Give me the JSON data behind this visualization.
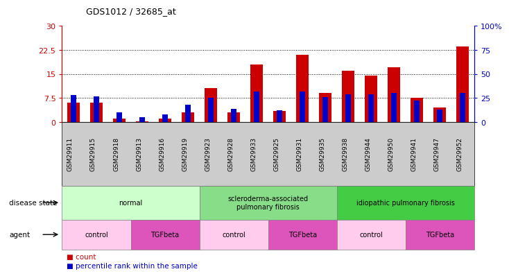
{
  "title": "GDS1012 / 32685_at",
  "samples": [
    "GSM29911",
    "GSM29915",
    "GSM29918",
    "GSM29913",
    "GSM29916",
    "GSM29919",
    "GSM29923",
    "GSM29928",
    "GSM29933",
    "GSM29925",
    "GSM29931",
    "GSM29935",
    "GSM29938",
    "GSM29944",
    "GSM29950",
    "GSM29941",
    "GSM29947",
    "GSM29952"
  ],
  "count_values": [
    6.0,
    6.0,
    1.0,
    0.3,
    1.0,
    3.0,
    10.5,
    3.0,
    18.0,
    3.5,
    21.0,
    9.0,
    16.0,
    14.5,
    17.0,
    7.5,
    4.5,
    23.5
  ],
  "percentile_values": [
    28,
    27,
    10,
    5,
    8,
    18,
    25,
    14,
    32,
    12,
    32,
    26,
    29,
    29,
    30,
    22,
    13,
    30
  ],
  "ylim_left": [
    0,
    30
  ],
  "ylim_right": [
    0,
    100
  ],
  "yticks_left": [
    0,
    7.5,
    15,
    22.5,
    30
  ],
  "yticks_right": [
    0,
    25,
    50,
    75,
    100
  ],
  "disease_state_groups": [
    {
      "label": "normal",
      "start": 0,
      "end": 6,
      "color": "#ccffcc"
    },
    {
      "label": "scleroderma-associated\npulmonary fibrosis",
      "start": 6,
      "end": 12,
      "color": "#88dd88"
    },
    {
      "label": "idiopathic pulmonary fibrosis",
      "start": 12,
      "end": 18,
      "color": "#44cc44"
    }
  ],
  "agent_groups": [
    {
      "label": "control",
      "start": 0,
      "end": 3,
      "color": "#ffccee"
    },
    {
      "label": "TGFbeta",
      "start": 3,
      "end": 6,
      "color": "#ee66cc"
    },
    {
      "label": "control",
      "start": 6,
      "end": 9,
      "color": "#ffccee"
    },
    {
      "label": "TGFbeta",
      "start": 9,
      "end": 12,
      "color": "#ee66cc"
    },
    {
      "label": "control",
      "start": 12,
      "end": 15,
      "color": "#ffccee"
    },
    {
      "label": "TGFbeta",
      "start": 15,
      "end": 18,
      "color": "#ee66cc"
    }
  ],
  "count_color": "#cc0000",
  "percentile_color": "#0000cc",
  "left_axis_color": "#cc0000",
  "right_axis_color": "#0000cc",
  "xlabel_bg": "#cccccc",
  "bar_width": 0.55,
  "pct_bar_width": 0.25
}
